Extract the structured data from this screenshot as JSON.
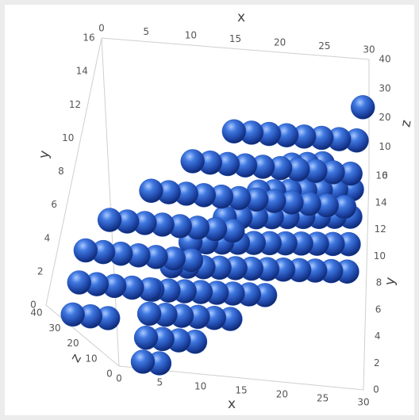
{
  "chart_data": {
    "type": "scatter3d",
    "x_label": "x",
    "y_label": "y",
    "z_label": "z",
    "xlim": [
      0,
      30
    ],
    "ylim": [
      0,
      16
    ],
    "zlim": [
      0,
      40
    ],
    "xticks": [
      0,
      5,
      10,
      15,
      20,
      25,
      30
    ],
    "yticks": [
      0,
      2,
      4,
      6,
      8,
      10,
      12,
      14,
      16
    ],
    "zticks": [
      0,
      10,
      20,
      30,
      40
    ],
    "color": "#1f4fbf",
    "columns": [
      {
        "x": 4,
        "z": 5,
        "y": [
          0,
          2,
          4,
          6
        ]
      },
      {
        "x": 6,
        "z": 5,
        "y": [
          0,
          2,
          4,
          6,
          8
        ]
      },
      {
        "x": 8,
        "z": 5,
        "y": [
          2,
          4,
          6,
          8,
          10
        ]
      },
      {
        "x": 10,
        "z": 5,
        "y": [
          2,
          4,
          6,
          8,
          10
        ]
      },
      {
        "x": 12,
        "z": 5,
        "y": [
          4,
          6,
          8,
          10,
          12
        ]
      },
      {
        "x": 14,
        "z": 5,
        "y": [
          4,
          6,
          8,
          10,
          12
        ]
      },
      {
        "x": 16,
        "z": 5,
        "y": [
          6,
          8,
          10,
          12,
          14
        ]
      },
      {
        "x": 18,
        "z": 5,
        "y": [
          6,
          8,
          10,
          12,
          14
        ]
      },
      {
        "x": 20,
        "z": 5,
        "y": [
          8,
          10,
          12,
          14,
          16
        ]
      },
      {
        "x": 22,
        "z": 5,
        "y": [
          8,
          10,
          12,
          14,
          16
        ]
      },
      {
        "x": 24,
        "z": 5,
        "y": [
          8,
          10,
          12,
          14,
          16
        ]
      },
      {
        "x": 26,
        "z": 5,
        "y": [
          8,
          10,
          12,
          14
        ]
      },
      {
        "x": 28,
        "z": 5,
        "y": [
          8,
          10,
          12,
          14
        ]
      },
      {
        "x": 2,
        "z": 35,
        "y": [
          0,
          2,
          4
        ]
      },
      {
        "x": 4,
        "z": 35,
        "y": [
          0,
          2,
          4,
          6
        ]
      },
      {
        "x": 6,
        "z": 35,
        "y": [
          0,
          2,
          4,
          6
        ]
      },
      {
        "x": 8,
        "z": 35,
        "y": [
          2,
          4,
          6,
          8
        ]
      },
      {
        "x": 10,
        "z": 35,
        "y": [
          2,
          4,
          6,
          8
        ]
      },
      {
        "x": 12,
        "z": 35,
        "y": [
          4,
          6,
          8,
          10
        ]
      },
      {
        "x": 14,
        "z": 35,
        "y": [
          4,
          6,
          8,
          10
        ]
      },
      {
        "x": 16,
        "z": 35,
        "y": [
          6,
          8,
          10,
          12
        ]
      },
      {
        "x": 18,
        "z": 35,
        "y": [
          6,
          8,
          10,
          12
        ]
      },
      {
        "x": 20,
        "z": 35,
        "y": [
          8,
          10,
          12
        ]
      },
      {
        "x": 22,
        "z": 35,
        "y": [
          8,
          10,
          12
        ]
      },
      {
        "x": 24,
        "z": 35,
        "y": [
          8,
          10,
          12
        ]
      },
      {
        "x": 26,
        "z": 35,
        "y": [
          8,
          10,
          12
        ]
      },
      {
        "x": 28,
        "z": 35,
        "y": [
          8,
          10,
          12
        ]
      },
      {
        "x": 30,
        "z": 35,
        "y": [
          8,
          10,
          12,
          14
        ]
      }
    ]
  }
}
